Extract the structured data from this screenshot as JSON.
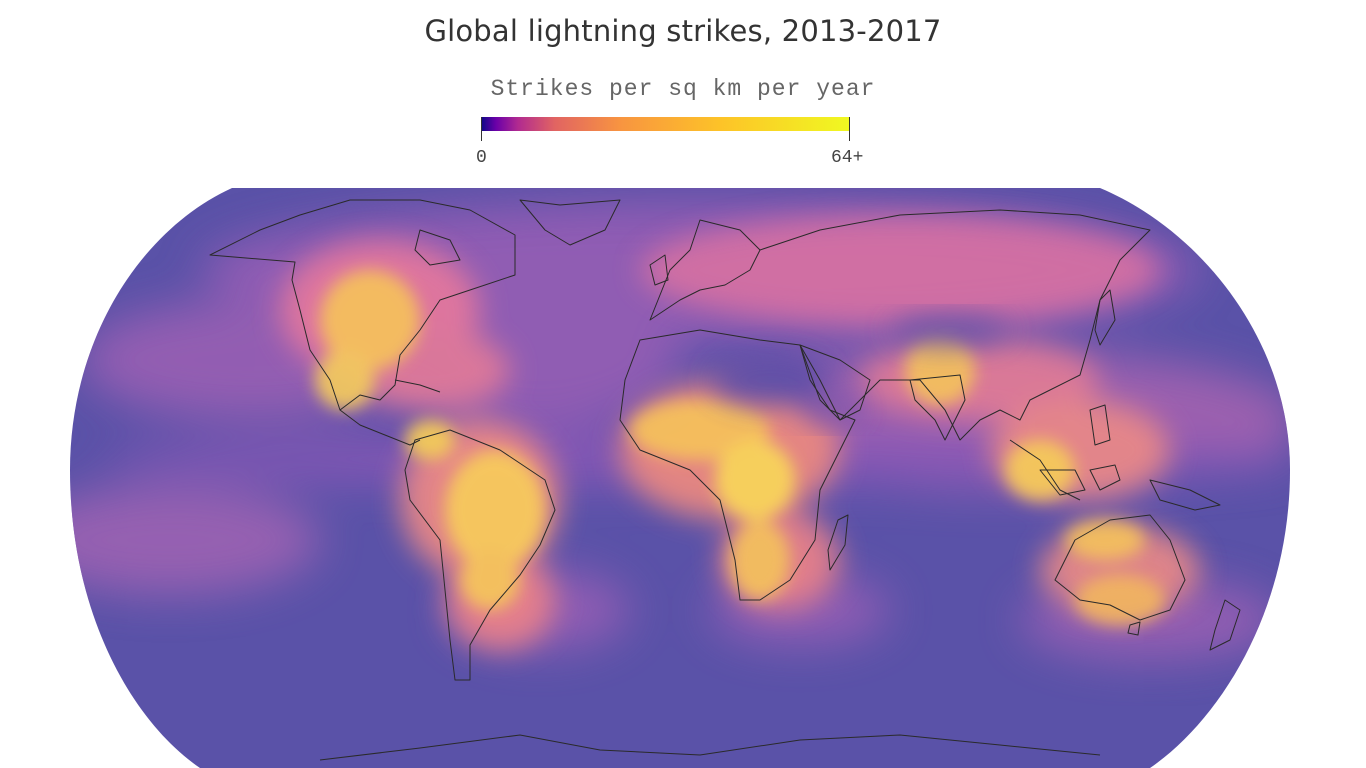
{
  "title": "Global lightning strikes, 2013-2017",
  "legend": {
    "title": "Strikes per sq km per year",
    "min_label": "0",
    "max_label": "64+",
    "color_scale": [
      "#0d0887",
      "#6a00a8",
      "#b12a90",
      "#e16462",
      "#f89540",
      "#fdc328",
      "#f0f921"
    ]
  },
  "map": {
    "projection": "robinson-like",
    "ocean_color": "#5a52a8",
    "coastline_color": "#2a2a2a",
    "high_density_color": "#f4e85a",
    "mid_density_color": "#e8799a"
  }
}
